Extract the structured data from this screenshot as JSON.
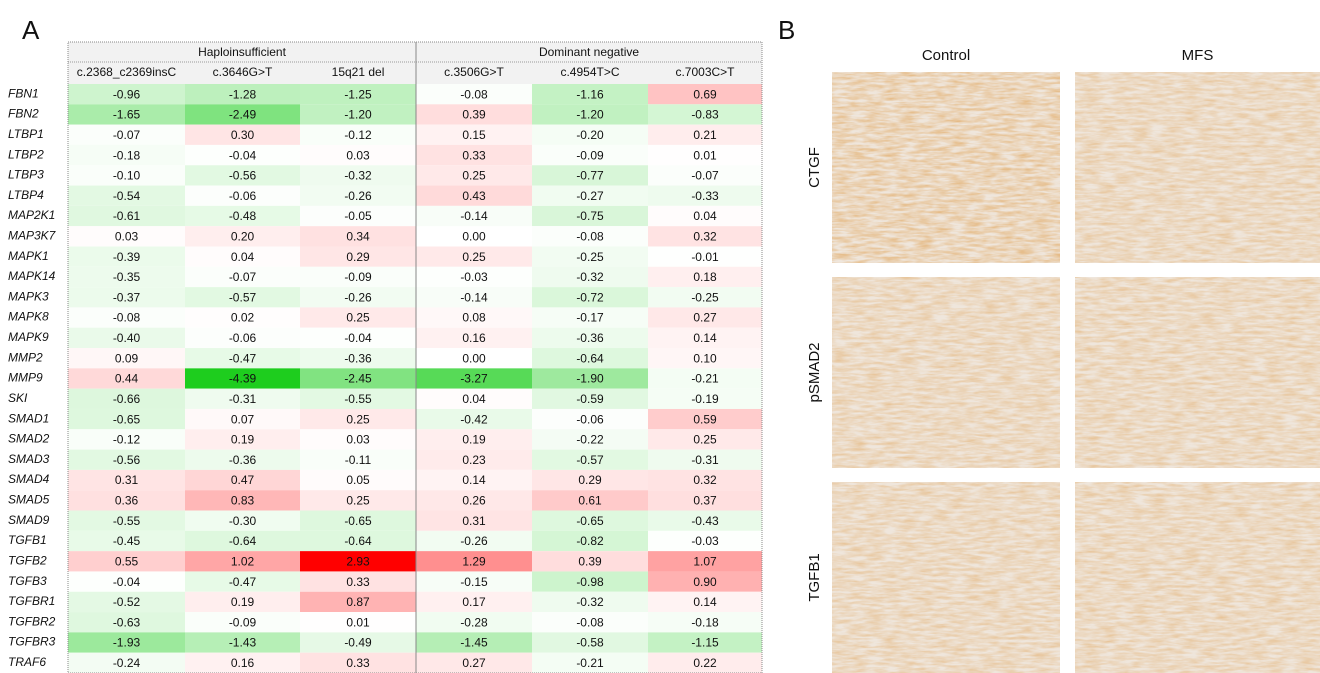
{
  "panel_a": {
    "label": "A",
    "groups": [
      "Haploinsufficient",
      "Dominant negative"
    ],
    "columns": [
      "c.2368_c2369insC",
      "c.3646G>T",
      "15q21 del",
      "c.3506G>T",
      "c.4954T>C",
      "c.7003C>T"
    ],
    "rows": [
      {
        "gene": "FBN1",
        "values": [
          "-0.96",
          "-1.28",
          "-1.25",
          "-0.08",
          "-1.16",
          "0.69"
        ]
      },
      {
        "gene": "FBN2",
        "values": [
          "-1.65",
          "-2.49",
          "-1.20",
          "0.39",
          "-1.20",
          "-0.83"
        ]
      },
      {
        "gene": "LTBP1",
        "values": [
          "-0.07",
          "0.30",
          "-0.12",
          "0.15",
          "-0.20",
          "0.21"
        ]
      },
      {
        "gene": "LTBP2",
        "values": [
          "-0.18",
          "-0.04",
          "0.03",
          "0.33",
          "-0.09",
          "0.01"
        ]
      },
      {
        "gene": "LTBP3",
        "values": [
          "-0.10",
          "-0.56",
          "-0.32",
          "0.25",
          "-0.77",
          "-0.07"
        ]
      },
      {
        "gene": "LTBP4",
        "values": [
          "-0.54",
          "-0.06",
          "-0.26",
          "0.43",
          "-0.27",
          "-0.33"
        ]
      },
      {
        "gene": "MAP2K1",
        "values": [
          "-0.61",
          "-0.48",
          "-0.05",
          "-0.14",
          "-0.75",
          "0.04"
        ]
      },
      {
        "gene": "MAP3K7",
        "values": [
          "0.03",
          "0.20",
          "0.34",
          "0.00",
          "-0.08",
          "0.32"
        ]
      },
      {
        "gene": "MAPK1",
        "values": [
          "-0.39",
          "0.04",
          "0.29",
          "0.25",
          "-0.25",
          "-0.01"
        ]
      },
      {
        "gene": "MAPK14",
        "values": [
          "-0.35",
          "-0.07",
          "-0.09",
          "-0.03",
          "-0.32",
          "0.18"
        ]
      },
      {
        "gene": "MAPK3",
        "values": [
          "-0.37",
          "-0.57",
          "-0.26",
          "-0.14",
          "-0.72",
          "-0.25"
        ]
      },
      {
        "gene": "MAPK8",
        "values": [
          "-0.08",
          "0.02",
          "0.25",
          "0.08",
          "-0.17",
          "0.27"
        ]
      },
      {
        "gene": "MAPK9",
        "values": [
          "-0.40",
          "-0.06",
          "-0.04",
          "0.16",
          "-0.36",
          "0.14"
        ]
      },
      {
        "gene": "MMP2",
        "values": [
          "0.09",
          "-0.47",
          "-0.36",
          "0.00",
          "-0.64",
          "0.10"
        ]
      },
      {
        "gene": "MMP9",
        "values": [
          "0.44",
          "-4.39",
          "-2.45",
          "-3.27",
          "-1.90",
          "-0.21"
        ]
      },
      {
        "gene": "SKI",
        "values": [
          "-0.66",
          "-0.31",
          "-0.55",
          "0.04",
          "-0.59",
          "-0.19"
        ]
      },
      {
        "gene": "SMAD1",
        "values": [
          "-0.65",
          "0.07",
          "0.25",
          "-0.42",
          "-0.06",
          "0.59"
        ]
      },
      {
        "gene": "SMAD2",
        "values": [
          "-0.12",
          "0.19",
          "0.03",
          "0.19",
          "-0.22",
          "0.25"
        ]
      },
      {
        "gene": "SMAD3",
        "values": [
          "-0.56",
          "-0.36",
          "-0.11",
          "0.23",
          "-0.57",
          "-0.31"
        ]
      },
      {
        "gene": "SMAD4",
        "values": [
          "0.31",
          "0.47",
          "0.05",
          "0.14",
          "0.29",
          "0.32"
        ]
      },
      {
        "gene": "SMAD5",
        "values": [
          "0.36",
          "0.83",
          "0.25",
          "0.26",
          "0.61",
          "0.37"
        ]
      },
      {
        "gene": "SMAD9",
        "values": [
          "-0.55",
          "-0.30",
          "-0.65",
          "0.31",
          "-0.65",
          "-0.43"
        ]
      },
      {
        "gene": "TGFB1",
        "values": [
          "-0.45",
          "-0.64",
          "-0.64",
          "-0.26",
          "-0.82",
          "-0.03"
        ]
      },
      {
        "gene": "TGFB2",
        "values": [
          "0.55",
          "1.02",
          "2.93",
          "1.29",
          "0.39",
          "1.07"
        ]
      },
      {
        "gene": "TGFB3",
        "values": [
          "-0.04",
          "-0.47",
          "0.33",
          "-0.15",
          "-0.98",
          "0.90"
        ]
      },
      {
        "gene": "TGFBR1",
        "values": [
          "-0.52",
          "0.19",
          "0.87",
          "0.17",
          "-0.32",
          "0.14"
        ]
      },
      {
        "gene": "TGFBR2",
        "values": [
          "-0.63",
          "-0.09",
          "0.01",
          "-0.28",
          "-0.08",
          "-0.18"
        ]
      },
      {
        "gene": "TGFBR3",
        "values": [
          "-1.93",
          "-1.43",
          "-0.49",
          "-1.45",
          "-0.58",
          "-1.15"
        ]
      },
      {
        "gene": "TRAF6",
        "values": [
          "-0.24",
          "0.16",
          "0.33",
          "0.27",
          "-0.21",
          "0.22"
        ]
      }
    ]
  },
  "panel_b": {
    "label": "B",
    "columns": [
      "Control",
      "MFS"
    ],
    "rows": [
      "CTGF",
      "pSMAD2",
      "TGFB1"
    ]
  }
}
